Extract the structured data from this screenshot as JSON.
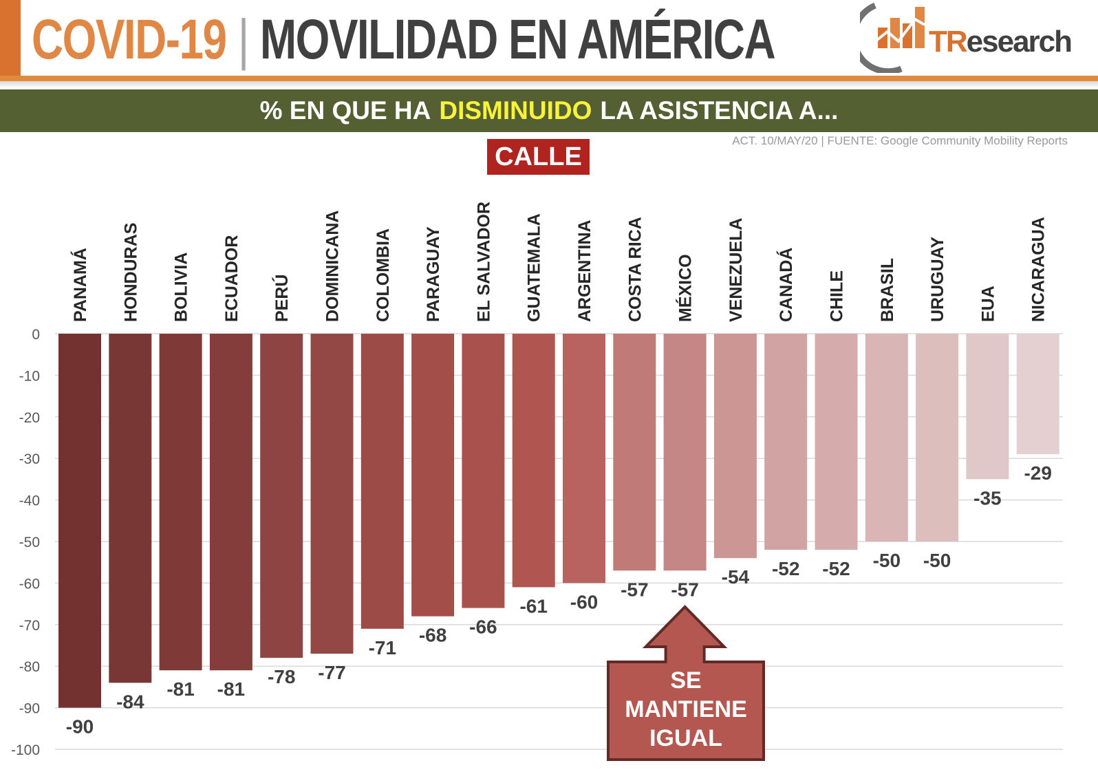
{
  "header": {
    "title_left": "COVID-19",
    "separator": "|",
    "title_right": "MOVILIDAD EN AMÉRICA",
    "logo_text_a": "TR",
    "logo_text_b": "esearch"
  },
  "banner": {
    "pre": "% EN QUE HA",
    "highlight": "DISMINUIDO",
    "post": "LA ASISTENCIA A..."
  },
  "source": "ACT. 10/MAY/20 | FUENTE: Google Community Mobility Reports",
  "category_badge": "CALLE",
  "callout": {
    "line1": "SE",
    "line2": "MANTIENE",
    "line3": "IGUAL",
    "target": "MÉXICO"
  },
  "colors": {
    "orange": "#e08745",
    "band": "#546031",
    "highlight": "#f6f33a",
    "badge": "#b0231e",
    "callout": "#b45751"
  },
  "chart_data": {
    "type": "bar",
    "title": "",
    "xlabel": "",
    "ylabel": "",
    "ylim": [
      -100,
      0
    ],
    "yticks": [
      0,
      -10,
      -20,
      -30,
      -40,
      -50,
      -60,
      -70,
      -80,
      -90,
      -100
    ],
    "grid": true,
    "legend": "none",
    "categories": [
      "PANAMÁ",
      "HONDURAS",
      "BOLIVIA",
      "ECUADOR",
      "PERÚ",
      "DOMINICANA",
      "COLOMBIA",
      "PARAGUAY",
      "EL SALVADOR",
      "GUATEMALA",
      "ARGENTINA",
      "COSTA RICA",
      "MÉXICO",
      "VENEZUELA",
      "CANADÁ",
      "CHILE",
      "BRASIL",
      "URUGUAY",
      "EUA",
      "NICARAGUA"
    ],
    "values": [
      -90,
      -84,
      -81,
      -81,
      -78,
      -77,
      -71,
      -68,
      -66,
      -61,
      -60,
      -57,
      -57,
      -54,
      -52,
      -52,
      -50,
      -50,
      -35,
      -29
    ],
    "bar_colors": [
      "#733130",
      "#783635",
      "#7f3a38",
      "#853d3b",
      "#8e4442",
      "#944845",
      "#9c4b47",
      "#a44e4a",
      "#a9514c",
      "#b0554f",
      "#b86360",
      "#c07b79",
      "#c58785",
      "#cc9694",
      "#d1a3a2",
      "#d5acab",
      "#d9b6b5",
      "#dcbebd",
      "#e0c8c8",
      "#e4d0d0"
    ]
  }
}
